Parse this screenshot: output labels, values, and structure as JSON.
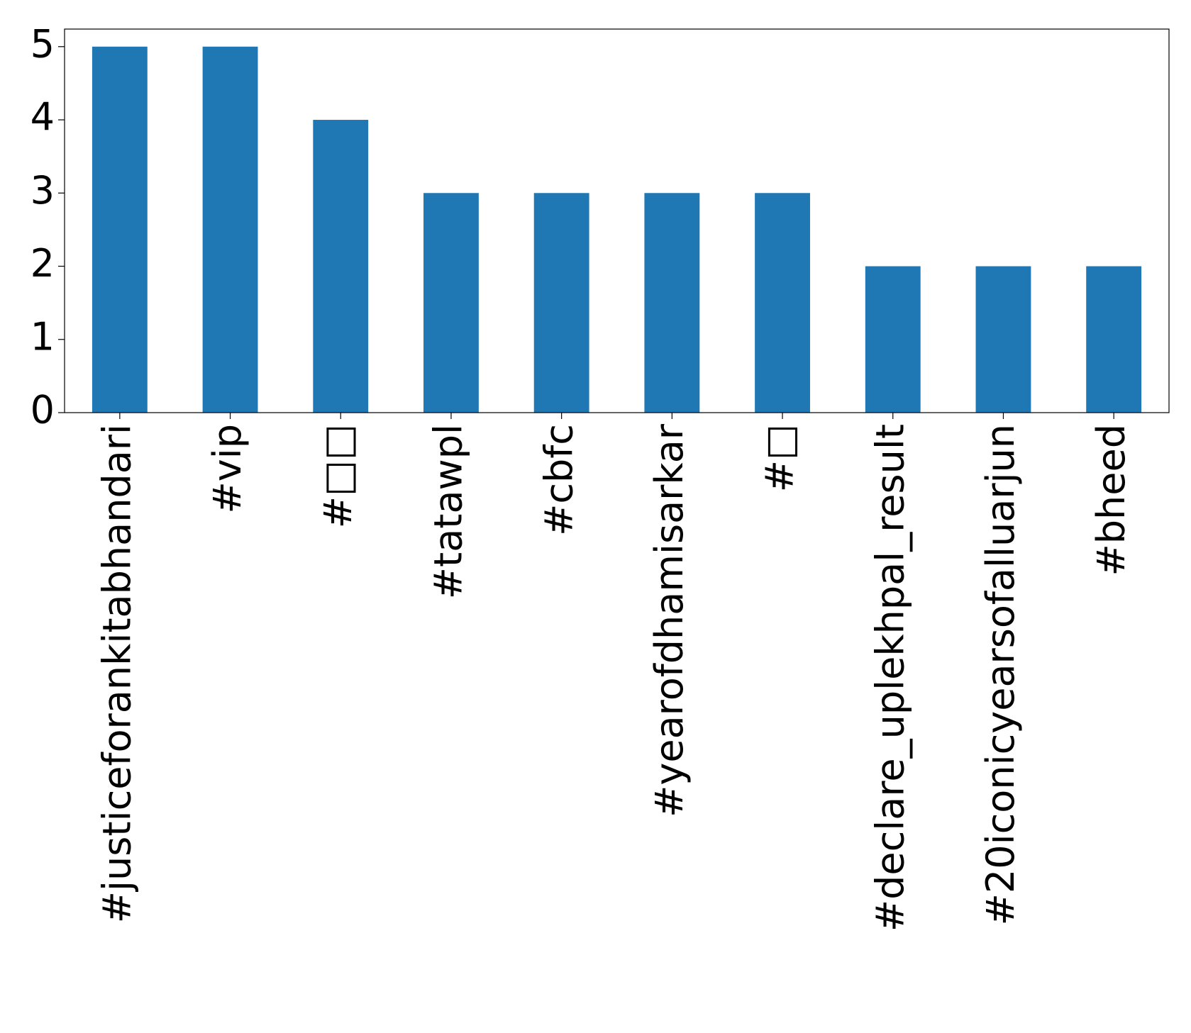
{
  "chart_data": {
    "type": "bar",
    "categories": [
      "#justiceforankitabhandari",
      "#vip",
      "#□□",
      "#tatawpl",
      "#cbfc",
      "#yearofdhamisarkar",
      "#□",
      "#declare_uplekhpal_result",
      "#20iconicyearsofalluarjun",
      "#bheed"
    ],
    "values": [
      5,
      5,
      4,
      3,
      3,
      3,
      3,
      2,
      2,
      2
    ],
    "color": "#1f77b4",
    "ylim": [
      0,
      5.24
    ],
    "yticks": [
      0,
      1,
      2,
      3,
      4,
      5
    ],
    "grid": false
  }
}
